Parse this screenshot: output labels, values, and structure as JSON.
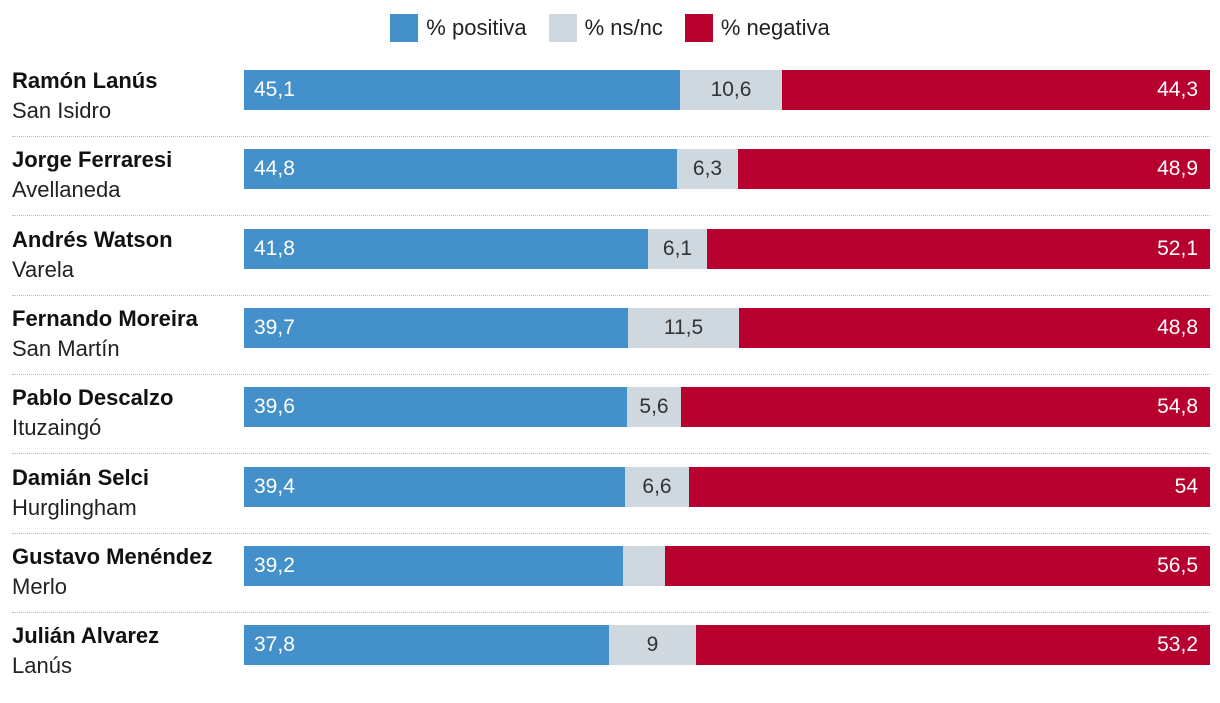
{
  "colors": {
    "positiva": "#4390cb",
    "nsnc": "#cfd8de",
    "negativa": "#b8002f"
  },
  "chart_data": {
    "type": "bar",
    "stacked": true,
    "orientation": "horizontal",
    "legend": [
      "% positiva",
      "% ns/nc",
      "% negativa"
    ],
    "categories": [
      {
        "name": "Ramón Lanús",
        "district": "San Isidro"
      },
      {
        "name": "Jorge Ferraresi",
        "district": "Avellaneda"
      },
      {
        "name": "Andrés Watson",
        "district": "Varela"
      },
      {
        "name": "Fernando Moreira",
        "district": "San Martín"
      },
      {
        "name": "Pablo Descalzo",
        "district": "Ituzaingó"
      },
      {
        "name": "Damián Selci",
        "district": "Hurglingham"
      },
      {
        "name": "Gustavo Menéndez",
        "district": "Merlo"
      },
      {
        "name": "Julián Alvarez",
        "district": "Lanús"
      }
    ],
    "series": [
      {
        "name": "% positiva",
        "values": [
          45.1,
          44.8,
          41.8,
          39.7,
          39.6,
          39.4,
          39.2,
          37.8
        ],
        "labels": [
          "45,1",
          "44,8",
          "41,8",
          "39,7",
          "39,6",
          "39,4",
          "39,2",
          "37,8"
        ]
      },
      {
        "name": "% ns/nc",
        "values": [
          10.6,
          6.3,
          6.1,
          11.5,
          5.6,
          6.6,
          4.3,
          9
        ],
        "labels": [
          "10,6",
          "6,3",
          "6,1",
          "11,5",
          "5,6",
          "6,6",
          "",
          "9"
        ]
      },
      {
        "name": "% negativa",
        "values": [
          44.3,
          48.9,
          52.1,
          48.8,
          54.8,
          54,
          56.5,
          53.2
        ],
        "labels": [
          "44,3",
          "48,9",
          "52,1",
          "48,8",
          "54,8",
          "54",
          "56,5",
          "53,2"
        ]
      }
    ]
  }
}
